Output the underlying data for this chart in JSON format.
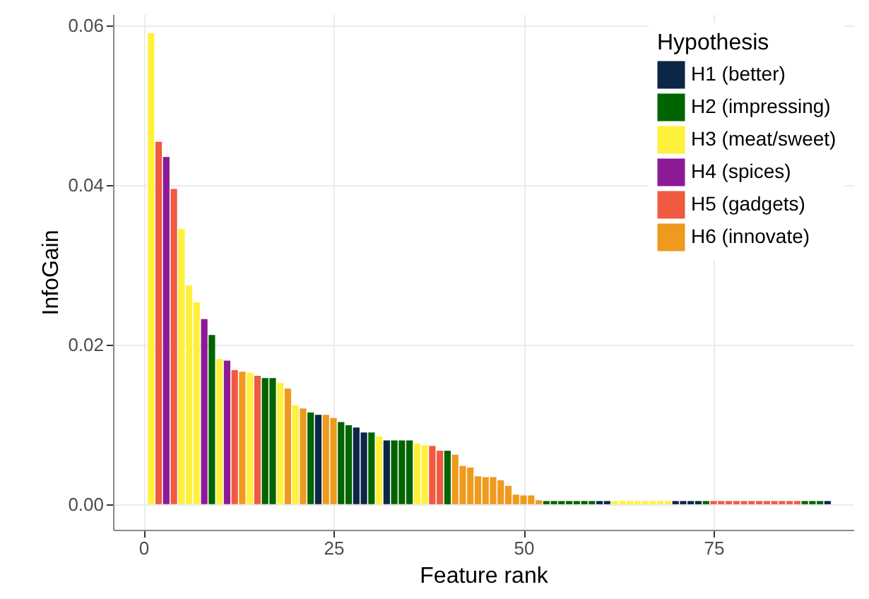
{
  "chart_data": {
    "type": "bar",
    "xlabel": "Feature rank",
    "ylabel": "InfoGain",
    "legend_title": "Hypothesis",
    "legend": "top right",
    "grid": true,
    "xlim": [
      -4,
      93.4
    ],
    "xticks": [
      0,
      25,
      50,
      75
    ],
    "ylim": [
      -0.0032,
      0.0614
    ],
    "yticks": [
      {
        "value": 0,
        "label": "0.00"
      },
      {
        "value": 0.02,
        "label": "0.02"
      },
      {
        "value": 0.04,
        "label": "0.04"
      },
      {
        "value": 0.06,
        "label": "0.06"
      }
    ],
    "series": [
      {
        "name": "H1 (better)",
        "color": "#0b2646",
        "x": [
          23,
          28,
          29,
          32,
          60,
          61,
          70,
          71,
          72,
          73,
          90
        ],
        "values": [
          0.0112,
          0.0096,
          0.009,
          0.008,
          0.0004,
          0.0004,
          0.0004,
          0.0004,
          0.0004,
          0.0004,
          0.0004
        ]
      },
      {
        "name": "H2 (impressing)",
        "color": "#006400",
        "x": [
          9,
          16,
          17,
          22,
          26,
          27,
          30,
          33,
          34,
          35,
          40,
          53,
          54,
          55,
          56,
          57,
          58,
          59,
          74,
          87,
          88,
          89
        ],
        "values": [
          0.0212,
          0.0158,
          0.0158,
          0.0115,
          0.0103,
          0.0099,
          0.009,
          0.008,
          0.008,
          0.008,
          0.0067,
          0.0004,
          0.0004,
          0.0004,
          0.0004,
          0.0004,
          0.0004,
          0.0004,
          0.0004,
          0.0004,
          0.0004,
          0.0004
        ]
      },
      {
        "name": "H3 (meat/sweet)",
        "color": "#fff03c",
        "x": [
          1,
          5,
          6,
          7,
          10,
          14,
          18,
          20,
          31,
          36,
          37,
          62,
          63,
          64,
          65,
          66,
          67,
          68,
          69
        ],
        "values": [
          0.059,
          0.0345,
          0.0274,
          0.0253,
          0.0182,
          0.0165,
          0.0152,
          0.0124,
          0.0085,
          0.0076,
          0.0074,
          0.0004,
          0.0004,
          0.0004,
          0.0004,
          0.0004,
          0.0004,
          0.0004,
          0.0004
        ]
      },
      {
        "name": "H4 (spices)",
        "color": "#8c1a96",
        "x": [
          3,
          8,
          11
        ],
        "values": [
          0.0435,
          0.0232,
          0.018
        ]
      },
      {
        "name": "H5 (gadgets)",
        "color": "#ef5a40",
        "x": [
          2,
          4,
          12,
          15,
          38,
          39,
          75,
          76,
          77,
          78,
          79,
          80,
          81,
          82,
          83,
          84,
          85,
          86
        ],
        "values": [
          0.0454,
          0.0395,
          0.0168,
          0.0161,
          0.0073,
          0.0067,
          0.0004,
          0.0004,
          0.0004,
          0.0004,
          0.0004,
          0.0004,
          0.0004,
          0.0004,
          0.0004,
          0.0004,
          0.0004,
          0.0004
        ]
      },
      {
        "name": "H6 (innovate)",
        "color": "#ee9a1e",
        "x": [
          13,
          19,
          21,
          24,
          25,
          41,
          42,
          43,
          44,
          45,
          46,
          47,
          48,
          49,
          50,
          51,
          52
        ],
        "values": [
          0.0166,
          0.0145,
          0.012,
          0.0112,
          0.0108,
          0.0062,
          0.0048,
          0.0046,
          0.0035,
          0.0034,
          0.0034,
          0.003,
          0.0023,
          0.0012,
          0.0011,
          0.0011,
          0.0005
        ]
      }
    ]
  }
}
